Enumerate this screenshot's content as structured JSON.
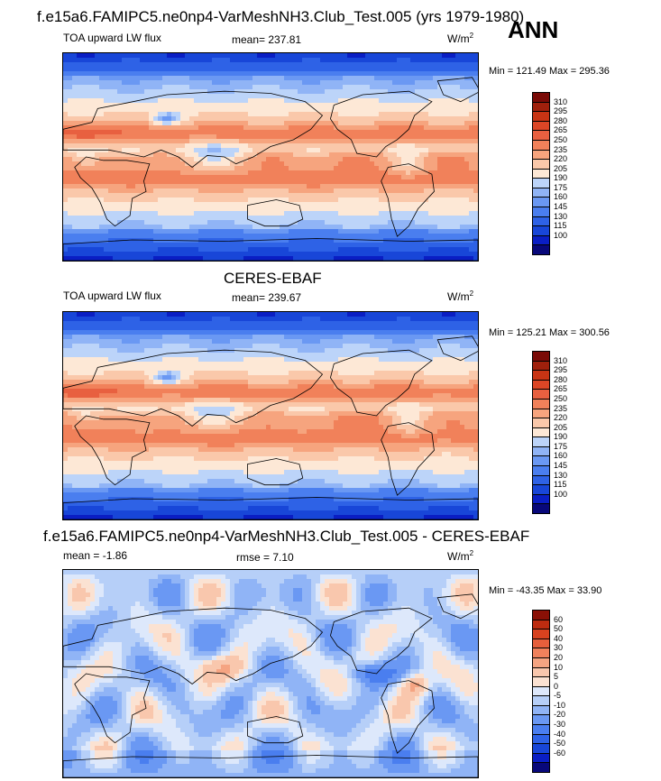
{
  "season": "ANN",
  "colors": {
    "coast": "#000000",
    "flux_scale": [
      "#08087a",
      "#0a1ec4",
      "#1846d8",
      "#2e62e6",
      "#4a7eef",
      "#6a98f3",
      "#90b4f6",
      "#bcd4f9",
      "#fde8d6",
      "#fac8aa",
      "#f6a47e",
      "#f1815a",
      "#e86040",
      "#dc4626",
      "#c83414",
      "#a0200c",
      "#7a0a06"
    ],
    "diff_scale": [
      "#08087a",
      "#0a1ec4",
      "#1846d8",
      "#2e62e6",
      "#4a7eef",
      "#6a98f3",
      "#90b4f6",
      "#b6cff8",
      "#dde8fb",
      "#fbe2d2",
      "#f9c7ad",
      "#f5a482",
      "#f0815c",
      "#e65f3c",
      "#d8421f",
      "#bd2c10",
      "#8a1006"
    ]
  },
  "panels": [
    {
      "title": "f.e15a6.FAMIPC5.ne0np4-VarMeshNH3.Club_Test.005 (yrs 1979-1980)",
      "left_label": "TOA upward LW flux",
      "center_label": "mean= 237.81",
      "right_label": "W/m",
      "right_sup": "2",
      "minmax": "Min = 121.49 Max = 295.36",
      "levels": [
        "310",
        "295",
        "280",
        "265",
        "250",
        "235",
        "220",
        "205",
        "190",
        "175",
        "160",
        "145",
        "130",
        "115",
        "100"
      ],
      "field": "model"
    },
    {
      "title": "CERES-EBAF",
      "left_label": "TOA upward LW flux",
      "center_label": "mean= 239.67",
      "right_label": "W/m",
      "right_sup": "2",
      "minmax": "Min = 125.21 Max = 300.56",
      "levels": [
        "310",
        "295",
        "280",
        "265",
        "250",
        "235",
        "220",
        "205",
        "190",
        "175",
        "160",
        "145",
        "130",
        "115",
        "100"
      ],
      "field": "obs"
    },
    {
      "title": "f.e15a6.FAMIPC5.ne0np4-VarMeshNH3.Club_Test.005 - CERES-EBAF",
      "left_label": "mean =  -1.86",
      "center_label": "rmse =   7.10",
      "right_label": "W/m",
      "right_sup": "2",
      "minmax": "Min = -43.35 Max =  33.90",
      "levels": [
        "60",
        "50",
        "40",
        "30",
        "20",
        "10",
        "5",
        "0",
        "-5",
        "-10",
        "-20",
        "-30",
        "-40",
        "-50",
        "-60"
      ],
      "field": "diff"
    }
  ],
  "chart_data": [
    {
      "type": "heatmap",
      "title": "f.e15a6.FAMIPC5.ne0np4-VarMeshNH3.Club_Test.005 (yrs 1979-1980)",
      "variable": "TOA upward LW flux",
      "units": "W/m2",
      "mean": 237.81,
      "min": 121.49,
      "max": 295.36,
      "contour_levels": [
        100,
        115,
        130,
        145,
        160,
        175,
        190,
        205,
        220,
        235,
        250,
        265,
        280,
        295,
        310
      ],
      "x_range": [
        0,
        360
      ],
      "y_range": [
        -90,
        90
      ]
    },
    {
      "type": "heatmap",
      "title": "CERES-EBAF",
      "variable": "TOA upward LW flux",
      "units": "W/m2",
      "mean": 239.67,
      "min": 125.21,
      "max": 300.56,
      "contour_levels": [
        100,
        115,
        130,
        145,
        160,
        175,
        190,
        205,
        220,
        235,
        250,
        265,
        280,
        295,
        310
      ],
      "x_range": [
        0,
        360
      ],
      "y_range": [
        -90,
        90
      ]
    },
    {
      "type": "heatmap",
      "title": "f.e15a6.FAMIPC5.ne0np4-VarMeshNH3.Club_Test.005 - CERES-EBAF",
      "units": "W/m2",
      "mean": -1.86,
      "rmse": 7.1,
      "min": -43.35,
      "max": 33.9,
      "contour_levels": [
        -60,
        -50,
        -40,
        -30,
        -20,
        -10,
        -5,
        0,
        5,
        10,
        20,
        30,
        40,
        50,
        60
      ],
      "x_range": [
        0,
        360
      ],
      "y_range": [
        -90,
        90
      ]
    }
  ]
}
